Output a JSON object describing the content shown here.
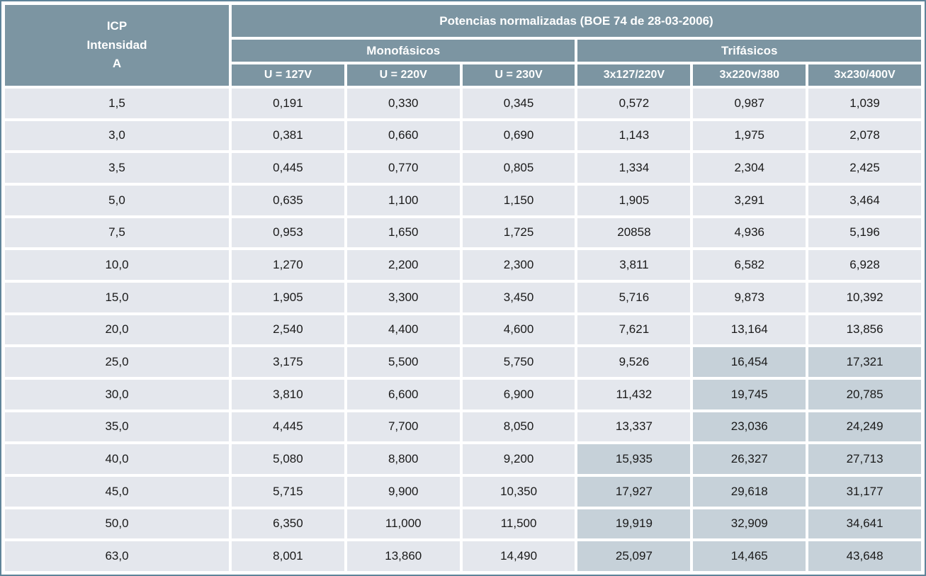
{
  "colors": {
    "header_bg": "#7c95a2",
    "header_text": "#ffffff",
    "cell_bg": "#e4e7ed",
    "shaded_cell_bg": "#c6d1d9",
    "cell_text": "#1a1a1a",
    "outer_border": "#5f8499",
    "gap_bg": "#ffffff"
  },
  "chart_data": {
    "type": "table",
    "title": "Potencias normalizadas (BOE 74 de 28-03-2006)",
    "corner_header_lines": [
      "ICP",
      "Intensidad",
      "A"
    ],
    "group_headers": [
      "Monofásicos",
      "Trifásicos"
    ],
    "column_headers": [
      "U = 127V",
      "U = 220V",
      "U = 230V",
      "3x127/220V",
      "3x220v/380",
      "3x230/400V"
    ],
    "rows": [
      {
        "icp": "1,5",
        "values": [
          "0,191",
          "0,330",
          "0,345",
          "0,572",
          "0,987",
          "1,039"
        ],
        "shaded_cols": []
      },
      {
        "icp": "3,0",
        "values": [
          "0,381",
          "0,660",
          "0,690",
          "1,143",
          "1,975",
          "2,078"
        ],
        "shaded_cols": []
      },
      {
        "icp": "3,5",
        "values": [
          "0,445",
          "0,770",
          "0,805",
          "1,334",
          "2,304",
          "2,425"
        ],
        "shaded_cols": []
      },
      {
        "icp": "5,0",
        "values": [
          "0,635",
          "1,100",
          "1,150",
          "1,905",
          "3,291",
          "3,464"
        ],
        "shaded_cols": []
      },
      {
        "icp": "7,5",
        "values": [
          "0,953",
          "1,650",
          "1,725",
          "20858",
          "4,936",
          "5,196"
        ],
        "shaded_cols": []
      },
      {
        "icp": "10,0",
        "values": [
          "1,270",
          "2,200",
          "2,300",
          "3,811",
          "6,582",
          "6,928"
        ],
        "shaded_cols": []
      },
      {
        "icp": "15,0",
        "values": [
          "1,905",
          "3,300",
          "3,450",
          "5,716",
          "9,873",
          "10,392"
        ],
        "shaded_cols": []
      },
      {
        "icp": "20,0",
        "values": [
          "2,540",
          "4,400",
          "4,600",
          "7,621",
          "13,164",
          "13,856"
        ],
        "shaded_cols": []
      },
      {
        "icp": "25,0",
        "values": [
          "3,175",
          "5,500",
          "5,750",
          "9,526",
          "16,454",
          "17,321"
        ],
        "shaded_cols": [
          4,
          5
        ]
      },
      {
        "icp": "30,0",
        "values": [
          "3,810",
          "6,600",
          "6,900",
          "11,432",
          "19,745",
          "20,785"
        ],
        "shaded_cols": [
          4,
          5
        ]
      },
      {
        "icp": "35,0",
        "values": [
          "4,445",
          "7,700",
          "8,050",
          "13,337",
          "23,036",
          "24,249"
        ],
        "shaded_cols": [
          4,
          5
        ]
      },
      {
        "icp": "40,0",
        "values": [
          "5,080",
          "8,800",
          "9,200",
          "15,935",
          "26,327",
          "27,713"
        ],
        "shaded_cols": [
          3,
          4,
          5
        ]
      },
      {
        "icp": "45,0",
        "values": [
          "5,715",
          "9,900",
          "10,350",
          "17,927",
          "29,618",
          "31,177"
        ],
        "shaded_cols": [
          3,
          4,
          5
        ]
      },
      {
        "icp": "50,0",
        "values": [
          "6,350",
          "11,000",
          "11,500",
          "19,919",
          "32,909",
          "34,641"
        ],
        "shaded_cols": [
          3,
          4,
          5
        ]
      },
      {
        "icp": "63,0",
        "values": [
          "8,001",
          "13,860",
          "14,490",
          "25,097",
          "14,465",
          "43,648"
        ],
        "shaded_cols": [
          3,
          4,
          5
        ]
      }
    ]
  }
}
